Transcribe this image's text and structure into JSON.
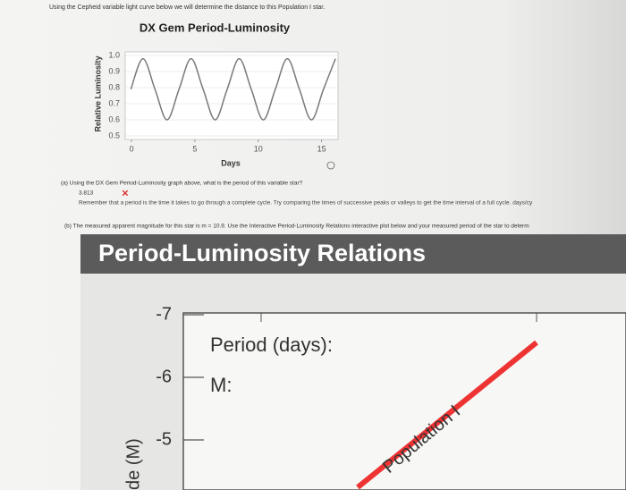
{
  "header": {
    "intro": "Using the Cepheid variable light curve below we will determine the distance to this Population I star."
  },
  "chart_data": {
    "type": "line",
    "title": "DX Gem Period-Luminosity",
    "x_label": "Days",
    "y_label": "Relative Luminosity",
    "x": [
      -0.05,
      0.9,
      1.85,
      2.8,
      3.75,
      4.7,
      5.65,
      6.6,
      7.55,
      8.5,
      9.45,
      10.4,
      11.35,
      12.3,
      13.25,
      14.2,
      15.15,
      16.1
    ],
    "values": [
      0.79,
      0.98,
      0.79,
      0.6,
      0.79,
      0.98,
      0.79,
      0.6,
      0.79,
      0.98,
      0.79,
      0.6,
      0.79,
      0.98,
      0.79,
      0.6,
      0.79,
      0.98
    ],
    "color": "#7a7a7a",
    "xlim": [
      -0.5,
      16.3
    ],
    "ylim": [
      0.5,
      1.0
    ],
    "xticks": [
      0,
      5,
      10,
      15
    ],
    "yticks": [
      0.5,
      0.6,
      0.7,
      0.8,
      0.9,
      {
        "value": 1,
        "label": "1.0"
      }
    ],
    "grid": true
  },
  "questions": {
    "a": {
      "text": "(a)  Using the DX Gem Period-Luminosity graph above, what is the period of this variable star?",
      "answer": "3.813",
      "hint": "Remember that a period is the time it takes to go through a complete cycle. Try comparing the times of successive peaks or valleys to get the time interval of a full cycle. days/cy"
    },
    "b": {
      "text": "(b)  The measured apparent magnitude for this star is m = 10.9. Use the Interactive Period-Luminosity Relations interactive plot below and your measured period of the star to determ"
    }
  },
  "interactive_plot": {
    "title": "Period-Luminosity Relations",
    "y_label": "de (M)",
    "ylim": [
      -4.2,
      -7
    ],
    "yticks": [
      -7,
      -6,
      -5
    ],
    "readouts": [
      "Period (days):",
      "M:"
    ],
    "line_label": "Population I"
  }
}
